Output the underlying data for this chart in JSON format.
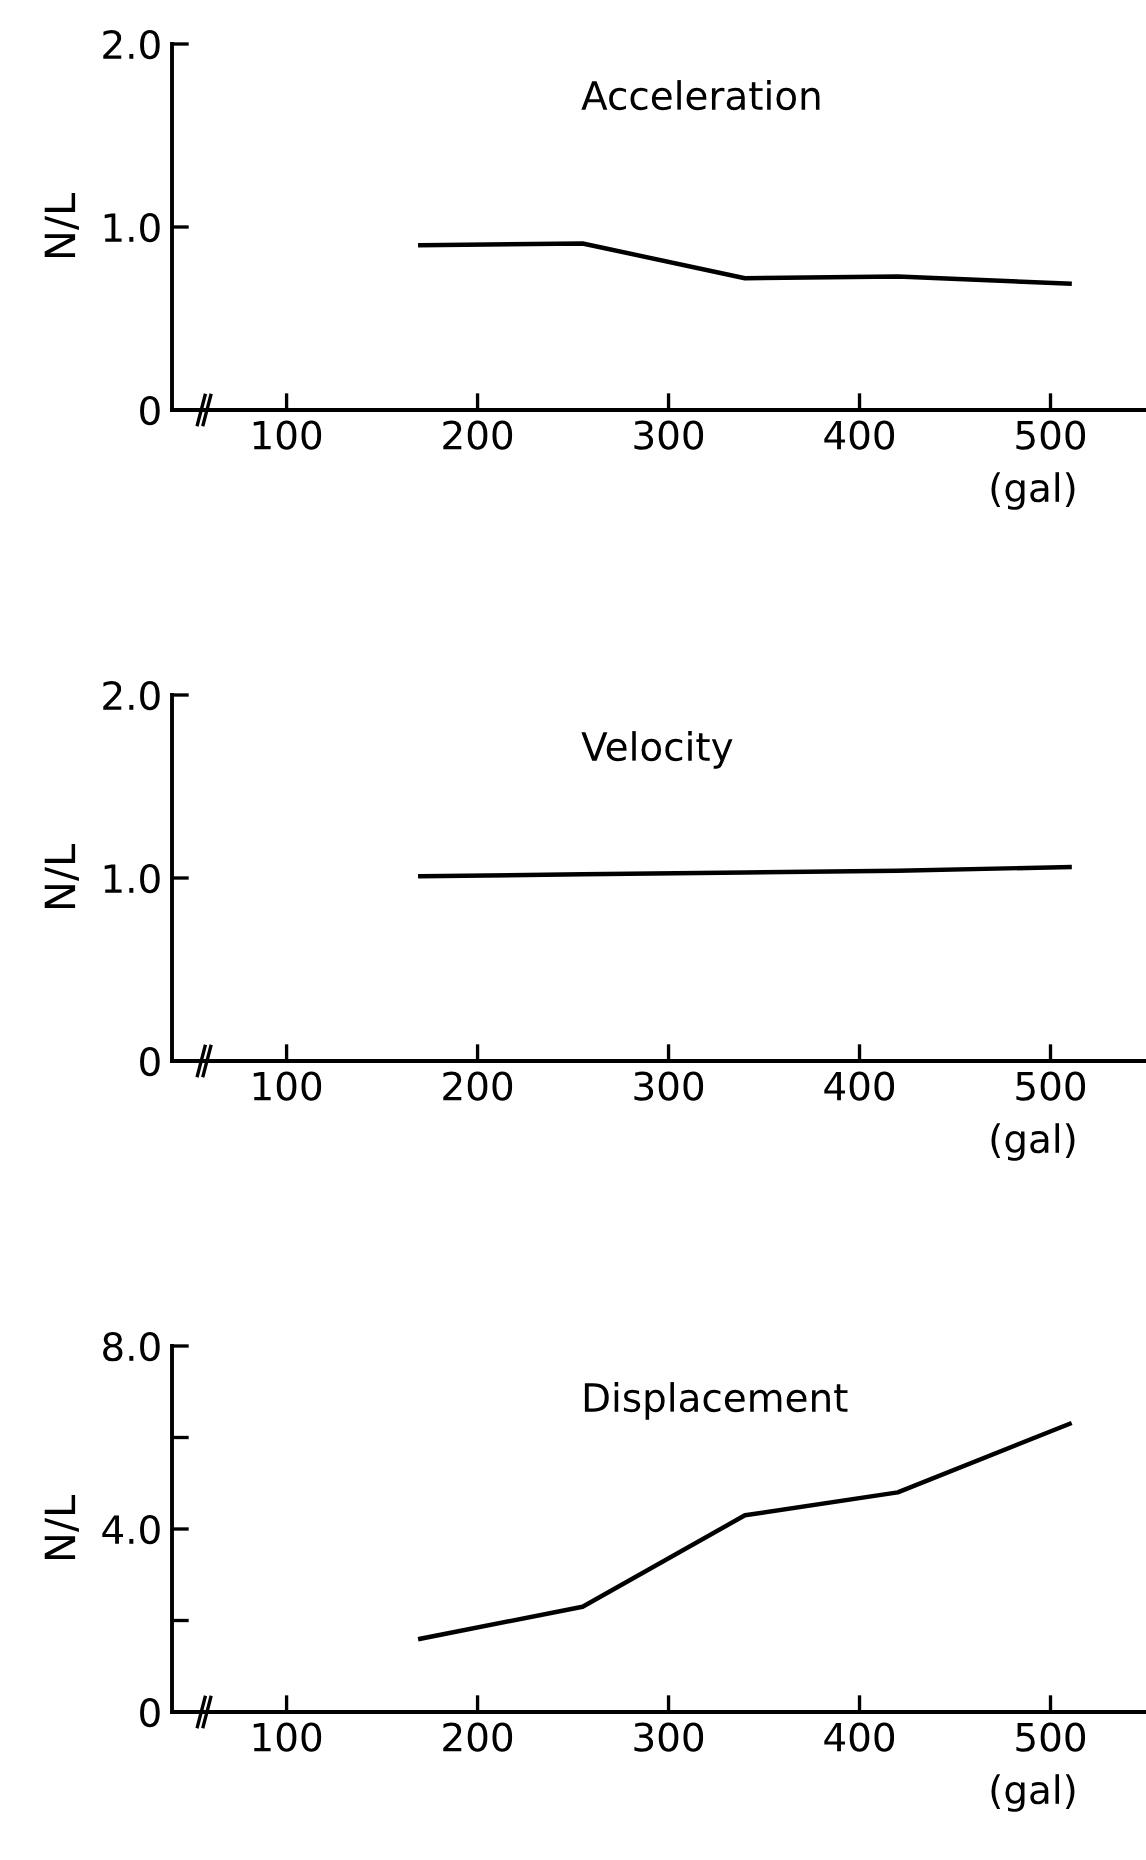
{
  "chart_data": [
    {
      "type": "line",
      "title": "Acceleration",
      "ylabel": "N/L",
      "xlabel": "(gal)",
      "x": [
        170,
        255,
        340,
        420,
        510
      ],
      "values": [
        0.9,
        0.91,
        0.72,
        0.73,
        0.69
      ],
      "color": "#000000",
      "xlim": [
        40,
        550
      ],
      "xticks": [
        100,
        200,
        300,
        400,
        500
      ],
      "ylim": [
        0,
        2.0
      ],
      "yticks": [
        {
          "value": 0,
          "label": "0"
        },
        {
          "value": 1,
          "label": "1.0"
        },
        {
          "value": 2,
          "label": "2.0"
        }
      ],
      "grid": false,
      "marker": "none",
      "line_style": "solid"
    },
    {
      "type": "line",
      "title": "Velocity",
      "ylabel": "N/L",
      "xlabel": "(gal)",
      "x": [
        170,
        255,
        340,
        420,
        510
      ],
      "values": [
        1.01,
        1.02,
        1.03,
        1.04,
        1.06
      ],
      "color": "#000000",
      "xlim": [
        40,
        550
      ],
      "xticks": [
        100,
        200,
        300,
        400,
        500
      ],
      "ylim": [
        0,
        2.0
      ],
      "yticks": [
        {
          "value": 0,
          "label": "0"
        },
        {
          "value": 1,
          "label": "1.0"
        },
        {
          "value": 2,
          "label": "2.0"
        }
      ],
      "grid": false,
      "marker": "none",
      "line_style": "solid"
    },
    {
      "type": "line",
      "title": "Displacement",
      "ylabel": "N/L",
      "xlabel": "(gal)",
      "x": [
        170,
        255,
        340,
        420,
        510
      ],
      "values": [
        1.6,
        2.3,
        4.3,
        4.8,
        6.3
      ],
      "color": "#000000",
      "xlim": [
        40,
        550
      ],
      "xticks": [
        100,
        200,
        300,
        400,
        500
      ],
      "ylim": [
        0,
        8.0
      ],
      "yticks": [
        {
          "value": 0,
          "label": "0"
        },
        {
          "value": 2,
          "label": null
        },
        {
          "value": 4,
          "label": "4.0"
        },
        {
          "value": 6,
          "label": null
        },
        {
          "value": 8,
          "label": "8.0"
        }
      ],
      "grid": false,
      "marker": "none",
      "line_style": "solid"
    }
  ]
}
